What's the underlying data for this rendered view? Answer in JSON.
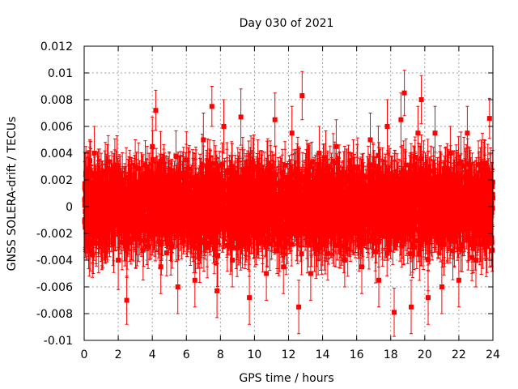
{
  "chart_data": {
    "type": "scatter",
    "title": "Day 030 of 2021",
    "xlabel": "GPS time / hours",
    "ylabel": "GNSS SOLERA-drift / TECUs",
    "xlim": [
      0,
      24
    ],
    "ylim": [
      -0.01,
      0.012
    ],
    "xticks": [
      0,
      2,
      4,
      6,
      8,
      10,
      12,
      14,
      16,
      18,
      20,
      22,
      24
    ],
    "yticks": [
      -0.01,
      -0.008,
      -0.006,
      -0.004,
      -0.002,
      0,
      0.002,
      0.004,
      0.006,
      0.008,
      0.01,
      0.012
    ],
    "ytick_labels": [
      "-0.01",
      "-0.008",
      "-0.006",
      "-0.004",
      "-0.002",
      "0",
      "0.002",
      "0.004",
      "0.006",
      "0.008",
      "0.01",
      "0.012"
    ],
    "grid": true,
    "color": "#ff0000",
    "series": [
      {
        "name": "SOLERA-drift",
        "x": [
          0.1,
          0.3,
          0.6,
          1.0,
          1.5,
          2.0,
          2.5,
          3.0,
          3.5,
          4.0,
          4.2,
          4.5,
          5.0,
          5.5,
          6.0,
          6.5,
          7.0,
          7.5,
          7.8,
          8.2,
          8.7,
          9.2,
          9.7,
          10.2,
          10.7,
          11.2,
          11.7,
          12.2,
          12.6,
          12.8,
          13.3,
          13.8,
          14.3,
          14.8,
          15.3,
          15.8,
          16.3,
          16.8,
          17.3,
          17.8,
          18.2,
          18.6,
          18.8,
          19.2,
          19.6,
          19.8,
          20.2,
          20.6,
          21.0,
          21.5,
          22.0,
          22.5,
          23.0,
          23.5,
          23.8
        ],
        "y": [
          0.0025,
          -0.003,
          0.004,
          -0.002,
          0.0015,
          -0.004,
          -0.007,
          0.003,
          -0.001,
          0.0045,
          0.0072,
          -0.0045,
          0.002,
          -0.006,
          0.0035,
          -0.0055,
          0.005,
          0.0075,
          -0.0063,
          0.006,
          -0.004,
          0.0067,
          -0.0068,
          0.003,
          -0.005,
          0.0065,
          -0.0045,
          0.0055,
          -0.0075,
          0.0083,
          -0.005,
          0.004,
          -0.0035,
          0.0045,
          -0.004,
          0.003,
          -0.0045,
          0.005,
          -0.0055,
          0.006,
          -0.0079,
          0.0065,
          0.0085,
          -0.0075,
          0.0055,
          0.008,
          -0.0068,
          0.0055,
          -0.006,
          0.004,
          -0.0055,
          0.0055,
          -0.004,
          0.003,
          0.0066
        ],
        "err": [
          0.002,
          0.0022,
          0.002,
          0.0021,
          0.002,
          0.0022,
          0.0018,
          0.002,
          0.002,
          0.0022,
          0.0015,
          0.002,
          0.002,
          0.002,
          0.0021,
          0.002,
          0.002,
          0.0015,
          0.002,
          0.002,
          0.002,
          0.0021,
          0.002,
          0.002,
          0.002,
          0.002,
          0.002,
          0.002,
          0.002,
          0.0018,
          0.002,
          0.002,
          0.002,
          0.002,
          0.002,
          0.002,
          0.002,
          0.002,
          0.002,
          0.002,
          0.0018,
          0.002,
          0.0017,
          0.002,
          0.002,
          0.0018,
          0.002,
          0.002,
          0.002,
          0.002,
          0.002,
          0.002,
          0.002,
          0.002,
          0.0015
        ]
      }
    ],
    "noise": {
      "count": 3400,
      "seed": 30,
      "spread": 0.0024,
      "err_min": 0.0015,
      "err_max": 0.0024
    }
  }
}
